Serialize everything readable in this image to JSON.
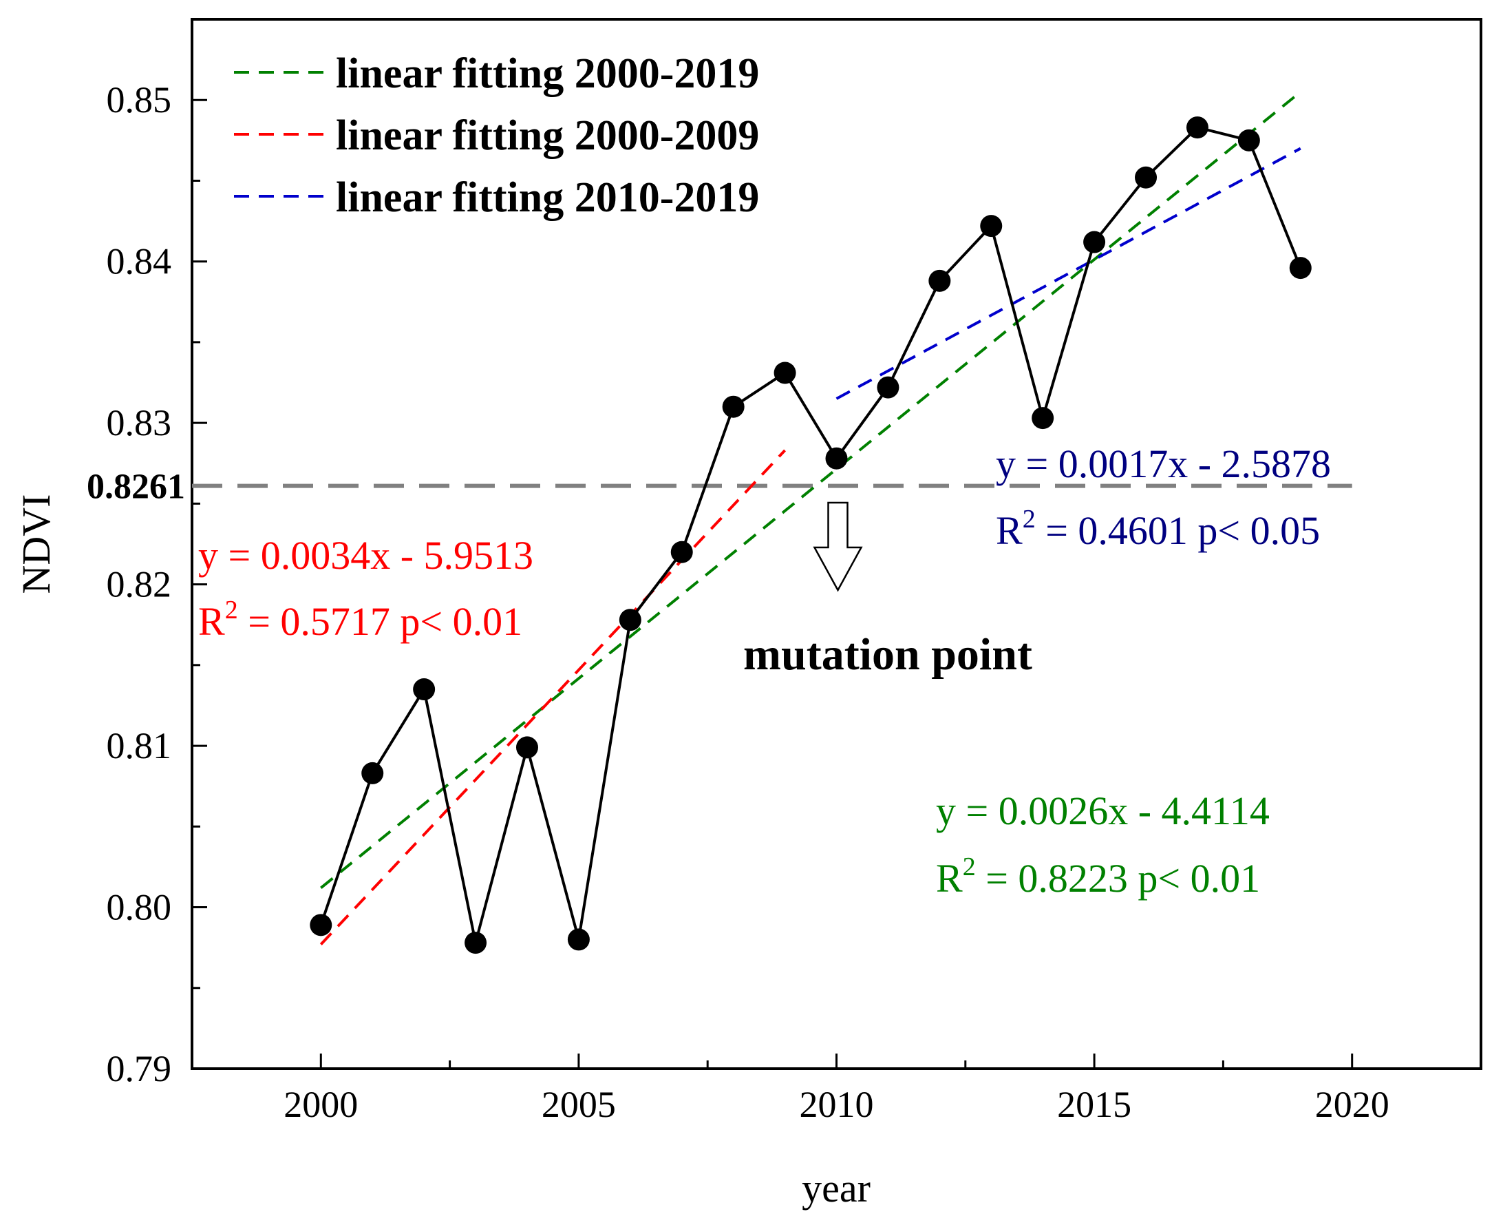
{
  "chart_data": {
    "type": "line",
    "xlabel": "year",
    "ylabel": "NDVI",
    "xlim": [
      1997.5,
      2022.5
    ],
    "ylim": [
      0.79,
      0.855
    ],
    "x_ticks": [
      2000,
      2005,
      2010,
      2015,
      2020
    ],
    "y_ticks": [
      0.79,
      0.8,
      0.81,
      0.82,
      0.83,
      0.84,
      0.85
    ],
    "y_tick_labels": [
      "0.79",
      "0.80",
      "0.81",
      "0.82",
      "0.83",
      "0.84",
      "0.85"
    ],
    "series": [
      {
        "name": "NDVI",
        "color": "#000000",
        "x": [
          2000,
          2001,
          2002,
          2003,
          2004,
          2005,
          2006,
          2007,
          2008,
          2009,
          2010,
          2011,
          2012,
          2013,
          2014,
          2015,
          2016,
          2017,
          2018,
          2019
        ],
        "values": [
          0.7989,
          0.8083,
          0.8135,
          0.7978,
          0.8099,
          0.798,
          0.8178,
          0.822,
          0.831,
          0.8331,
          0.8278,
          0.8322,
          0.8388,
          0.8422,
          0.8303,
          0.8412,
          0.8452,
          0.8483,
          0.8475,
          0.8396
        ]
      }
    ],
    "fits": [
      {
        "legend": "linear fitting 2000-2019",
        "color": "#008000",
        "x_range": [
          2000,
          2019
        ],
        "y_range": [
          0.8012,
          0.8505
        ]
      },
      {
        "legend": "linear fitting 2000-2009",
        "color": "#ff0000",
        "x_range": [
          2000,
          2009
        ],
        "y_range": [
          0.7977,
          0.8283
        ]
      },
      {
        "legend": "linear fitting 2010-2019",
        "color": "#0000cc",
        "x_range": [
          2010,
          2019
        ],
        "y_range": [
          0.8315,
          0.847
        ]
      }
    ],
    "reference_line": {
      "value": 0.8261,
      "label": "0.8261",
      "color": "#808080"
    },
    "annotations": {
      "red_eq": "y = 0.0034x - 5.9513",
      "red_r2_prefix": "R",
      "red_r2_rest": " = 0.5717  p< 0.01",
      "blue_eq": "y = 0.0017x - 2.5878",
      "blue_r2_prefix": "R",
      "blue_r2_rest": " = 0.4601  p< 0.05",
      "green_eq": "y = 0.0026x - 4.4114",
      "green_r2_prefix": "R",
      "green_r2_rest": " = 0.8223  p< 0.01",
      "superscript": "2",
      "mutation_label": "mutation point",
      "mutation_year": 2010
    },
    "colors": {
      "red_text": "#ff0000",
      "blue_text": "#000080",
      "green_text": "#008000"
    }
  }
}
